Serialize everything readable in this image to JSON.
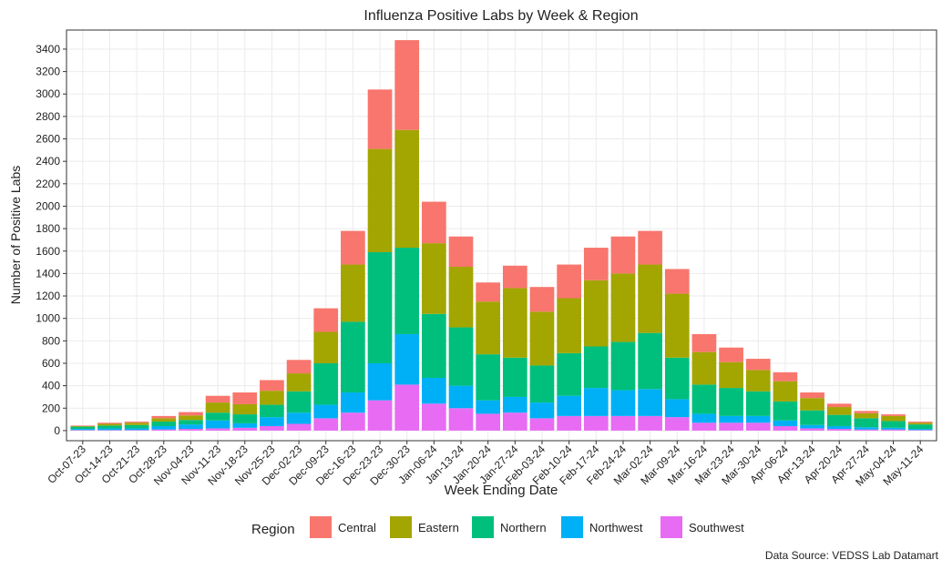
{
  "chart_data": {
    "type": "stacked-bar",
    "title": "Influenza Positive Labs by Week & Region",
    "x_label": "Week Ending Date",
    "y_label": "Number of Positive Labs",
    "legend_title": "Region",
    "caption": "Data Source: VEDSS Lab Datamart",
    "categories": [
      "Oct-07-23",
      "Oct-14-23",
      "Oct-21-23",
      "Oct-28-23",
      "Nov-04-23",
      "Nov-11-23",
      "Nov-18-23",
      "Nov-25-23",
      "Dec-02-23",
      "Dec-09-23",
      "Dec-16-23",
      "Dec-23-23",
      "Dec-30-23",
      "Jan-06-24",
      "Jan-13-24",
      "Jan-20-24",
      "Jan-27-24",
      "Feb-03-24",
      "Feb-10-24",
      "Feb-17-24",
      "Feb-24-24",
      "Mar-02-24",
      "Mar-09-24",
      "Mar-16-24",
      "Mar-23-24",
      "Mar-30-24",
      "Apr-06-24",
      "Apr-13-24",
      "Apr-20-24",
      "Apr-27-24",
      "May-04-24",
      "May-11-24"
    ],
    "series": [
      {
        "name": "Central",
        "color": "#F8766D",
        "values": [
          5,
          10,
          10,
          20,
          30,
          60,
          105,
          95,
          120,
          210,
          300,
          530,
          800,
          370,
          270,
          170,
          200,
          220,
          300,
          290,
          330,
          300,
          220,
          160,
          130,
          100,
          80,
          50,
          30,
          20,
          15,
          10
        ]
      },
      {
        "name": "Eastern",
        "color": "#A3A500",
        "values": [
          5,
          15,
          20,
          30,
          40,
          90,
          90,
          125,
          160,
          280,
          510,
          920,
          1050,
          630,
          540,
          470,
          620,
          480,
          490,
          590,
          610,
          610,
          570,
          290,
          230,
          190,
          180,
          110,
          70,
          45,
          45,
          15
        ]
      },
      {
        "name": "Northern",
        "color": "#00BF7D",
        "values": [
          20,
          25,
          30,
          40,
          40,
          70,
          80,
          110,
          190,
          370,
          630,
          990,
          770,
          570,
          520,
          410,
          350,
          330,
          380,
          370,
          430,
          500,
          370,
          260,
          250,
          220,
          170,
          130,
          100,
          80,
          60,
          40
        ]
      },
      {
        "name": "Northwest",
        "color": "#00B0F6",
        "values": [
          10,
          15,
          15,
          30,
          40,
          70,
          40,
          80,
          100,
          120,
          180,
          330,
          450,
          230,
          200,
          120,
          140,
          140,
          180,
          250,
          230,
          240,
          160,
          80,
          60,
          60,
          50,
          30,
          25,
          20,
          15,
          10
        ]
      },
      {
        "name": "Southwest",
        "color": "#E76BF3",
        "values": [
          5,
          5,
          5,
          10,
          15,
          20,
          25,
          40,
          60,
          110,
          160,
          270,
          410,
          240,
          200,
          150,
          160,
          110,
          130,
          130,
          130,
          130,
          120,
          70,
          70,
          70,
          40,
          20,
          15,
          10,
          10,
          5
        ]
      }
    ],
    "ylim": [
      -90,
      3570
    ],
    "yticks": [
      0,
      200,
      400,
      600,
      800,
      1000,
      1200,
      1400,
      1600,
      1800,
      2000,
      2200,
      2400,
      2600,
      2800,
      3000,
      3200,
      3400
    ],
    "grid": true
  }
}
